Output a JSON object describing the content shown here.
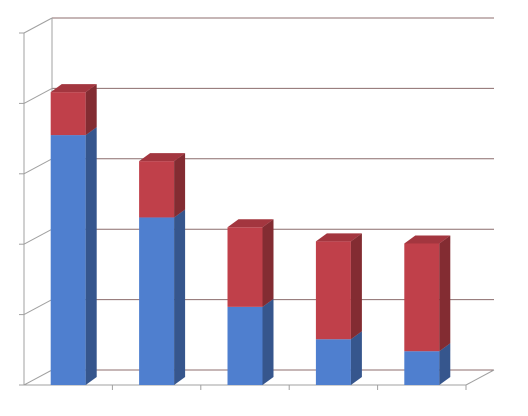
{
  "chart_data": {
    "type": "bar",
    "stacked": true,
    "categories": [
      null,
      null,
      null,
      null,
      null
    ],
    "series": [
      {
        "color": "#4f7fcf",
        "values": [
          3.55,
          2.38,
          1.11,
          0.65,
          0.48
        ]
      },
      {
        "color": "#c0404a",
        "values": [
          0.61,
          0.8,
          1.13,
          1.39,
          1.53
        ]
      }
    ],
    "ylim": [
      0,
      5
    ],
    "yticks": [
      0,
      1,
      2,
      3,
      4,
      5
    ],
    "grid": true
  }
}
